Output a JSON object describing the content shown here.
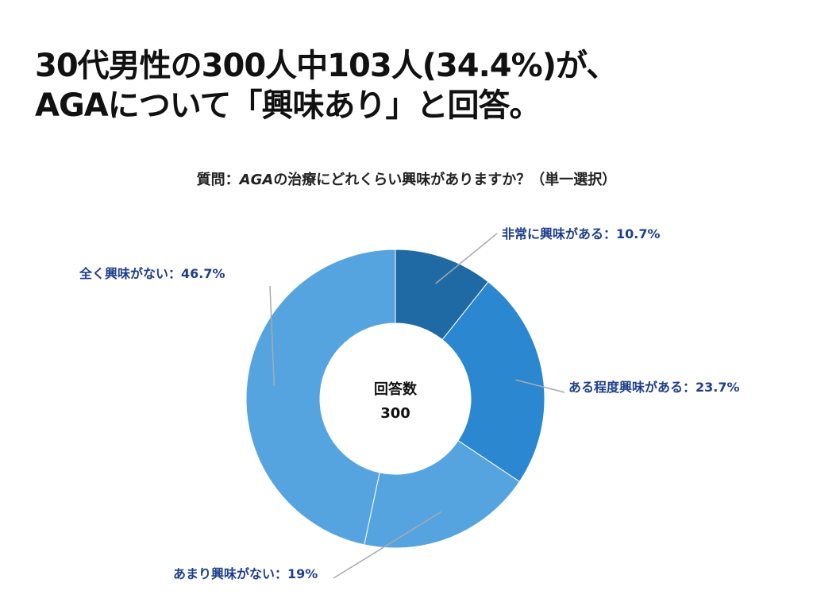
{
  "headline": {
    "line1": "30代男性の300人中103人(34.4%)が、",
    "line2": "AGAについて「興味あり」と回答。"
  },
  "question": {
    "prefix": "質問：",
    "italic": "AGA",
    "rest": "の治療にどれくらい興味がありますか？（単一選択）"
  },
  "chart_data": {
    "type": "pie",
    "donut": true,
    "total_label": "回答数",
    "total": "300",
    "slices": [
      {
        "label": "非常に興味がある",
        "value": 10.7,
        "display": "非常に興味がある：10.7%",
        "color": "#1f6aa5"
      },
      {
        "label": "ある程度興味がある",
        "value": 23.7,
        "display": "ある程度興味がある：23.7%",
        "color": "#2a87d0"
      },
      {
        "label": "あまり興味がない",
        "value": 19,
        "display": "あまり興味がない：19%",
        "color": "#55a4e0"
      },
      {
        "label": "全く興味がない",
        "value": 46.7,
        "display": "全く興味がない：46.7%",
        "color": "#55a4e0"
      }
    ],
    "label_color": "#1f3e8c",
    "leader_color": "#aaaaaa"
  }
}
